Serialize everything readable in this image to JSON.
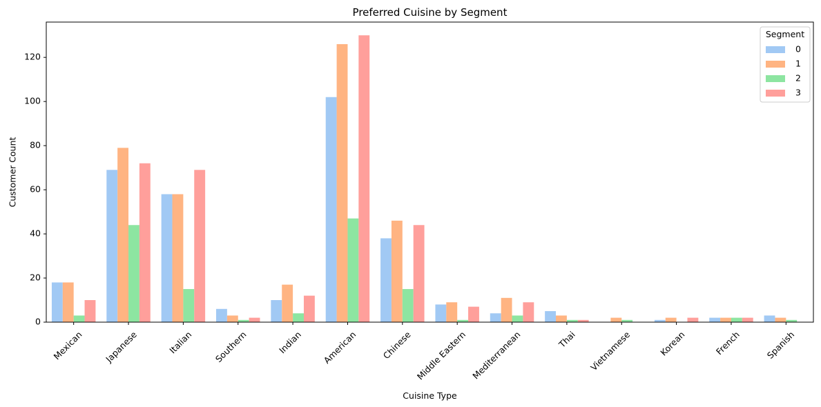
{
  "chart_data": {
    "type": "bar",
    "title": "Preferred Cuisine by Segment",
    "xlabel": "Cuisine Type",
    "ylabel": "Customer Count",
    "ylim": [
      0,
      136
    ],
    "yticks": [
      0,
      20,
      40,
      60,
      80,
      100,
      120
    ],
    "categories": [
      "Mexican",
      "Japanese",
      "Italian",
      "Southern",
      "Indian",
      "American",
      "Chinese",
      "Middle Eastern",
      "Mediterranean",
      "Thai",
      "Vietnamese",
      "Korean",
      "French",
      "Spanish"
    ],
    "legend": {
      "title": "Segment",
      "placement": "top-right"
    },
    "series": [
      {
        "name": "0",
        "color": "#a1c9f4",
        "values": [
          18,
          69,
          58,
          6,
          10,
          102,
          38,
          8,
          4,
          5,
          0,
          1,
          2,
          3
        ]
      },
      {
        "name": "1",
        "color": "#ffb482",
        "values": [
          18,
          79,
          58,
          3,
          17,
          126,
          46,
          9,
          11,
          3,
          2,
          2,
          2,
          2
        ]
      },
      {
        "name": "2",
        "color": "#8de5a1",
        "values": [
          3,
          44,
          15,
          1,
          4,
          47,
          15,
          1,
          3,
          1,
          1,
          0,
          2,
          1
        ]
      },
      {
        "name": "3",
        "color": "#ff9f9b",
        "values": [
          10,
          72,
          69,
          2,
          12,
          130,
          44,
          7,
          9,
          1,
          0,
          2,
          2,
          0
        ]
      }
    ],
    "grid": false
  }
}
